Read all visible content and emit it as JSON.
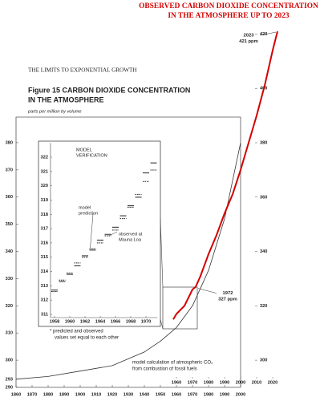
{
  "chart_data": [
    {
      "type": "line",
      "running_head": "THE LIMITS TO EXPONENTIAL GROWTH",
      "title": [
        "Figure 15 CARBON DIOXIDE CONCENTRATION",
        "IN THE ATMOSPHERE"
      ],
      "y_label": "parts per million by volume",
      "annotation": [
        "model calculation of atmospheric CO₂",
        "from combustion of fossil fuels"
      ],
      "x": [
        1860,
        1880,
        1900,
        1920,
        1940,
        1950,
        1960,
        1970,
        1980,
        1990,
        2000
      ],
      "series": [
        {
          "color": "#333333",
          "values": [
            293,
            294,
            296,
            298,
            303,
            307,
            312,
            320,
            333,
            352,
            380
          ]
        }
      ],
      "xlim": [
        1860,
        2000
      ],
      "xticks": [
        1860,
        1870,
        1880,
        1890,
        1900,
        1910,
        1920,
        1930,
        1940,
        1950,
        1960,
        1970,
        1980,
        1990,
        2000
      ],
      "ylim": [
        290,
        390
      ],
      "yticks": [
        290,
        293,
        300,
        310,
        320,
        330,
        340,
        350,
        360,
        370,
        380
      ]
    },
    {
      "type": "line",
      "title": [
        "OBSERVED CARBON DIOXIDE CONCENTRATION",
        "IN THE ATMOSPHERE UP TO 2023"
      ],
      "x": [
        1958,
        1960,
        1965,
        1970,
        1972,
        1975,
        1980,
        1985,
        1990,
        1995,
        2000,
        2005,
        2010,
        2015,
        2020,
        2023
      ],
      "series": [
        {
          "color": "#d40000",
          "values": [
            315,
            317,
            320,
            326,
            327,
            331,
            339,
            346,
            354,
            361,
            370,
            380,
            390,
            401,
            414,
            421
          ]
        }
      ],
      "annotations": [
        {
          "x": 1972,
          "y": 327,
          "label": [
            "1972",
            "327 ppm"
          ]
        },
        {
          "x": 2023,
          "y": 421,
          "label": [
            "2023",
            "421 ppm"
          ]
        }
      ],
      "xlim": [
        1860,
        2025
      ],
      "xticks": [
        1960,
        1970,
        1980,
        1990,
        2000,
        2010,
        2020
      ],
      "ylim": [
        290,
        425
      ],
      "yticks": [
        300,
        320,
        340,
        360,
        380,
        400,
        420
      ]
    },
    {
      "type": "dash",
      "title": [
        "MODEL",
        "VERIFICATION"
      ],
      "footnote": [
        "* predicted and observed",
        "values set equal to each other"
      ],
      "x": [
        1958,
        1959,
        1960,
        1961,
        1962,
        1963,
        1964,
        1965,
        1966,
        1967,
        1968,
        1969,
        1970,
        1971
      ],
      "series": [
        {
          "label": [
            "model",
            "prediction"
          ],
          "style": "dashed",
          "color": "#222222",
          "values": [
            312.6,
            313.4,
            313.9,
            314.6,
            315.0,
            315.6,
            316.0,
            316.5,
            316.9,
            317.7,
            318.5,
            319.4,
            320.3,
            321.1
          ]
        },
        {
          "label": [
            "observed at",
            "Mauna Loa"
          ],
          "style": "solid",
          "color": "#222222",
          "values": [
            312.7,
            313.3,
            313.8,
            314.4,
            315.1,
            315.5,
            316.2,
            316.6,
            317.1,
            317.9,
            318.6,
            319.2,
            320.9,
            321.6
          ]
        }
      ],
      "xlim": [
        1957,
        1971.5
      ],
      "xticks": [
        1958,
        1960,
        1962,
        1964,
        1966,
        1968,
        1970
      ],
      "ylim": [
        310.5,
        323
      ],
      "yticks": [
        311,
        312,
        313,
        314,
        315,
        316,
        317,
        318,
        319,
        320,
        321,
        322
      ]
    }
  ]
}
